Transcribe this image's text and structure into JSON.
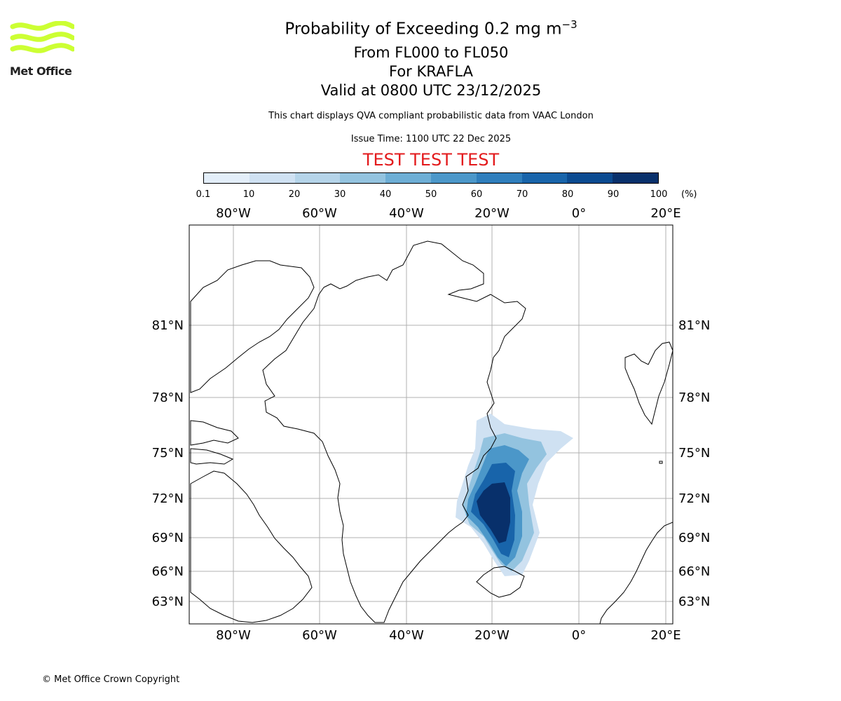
{
  "logo": {
    "text": "Met Office",
    "color": "#ccff33"
  },
  "header": {
    "title_prefix": "Probability of Exceeding 0.2 mg m",
    "title_sup": "−3",
    "levels": "From FL000 to FL050",
    "volcano": "For KRAFLA",
    "valid": "Valid at 0800 UTC 23/12/2025",
    "note": "This chart displays QVA compliant probabilistic data from VAAC London",
    "issue": "Issue Time: 1100 UTC 22 Dec 2025",
    "test_banner": "TEST TEST TEST",
    "test_color": "#e31a1c"
  },
  "colorbar": {
    "ticks": [
      "0.1",
      "10",
      "20",
      "30",
      "40",
      "50",
      "60",
      "70",
      "80",
      "90",
      "100"
    ],
    "unit": "(%)",
    "colors": [
      "#e3eef9",
      "#cfe1f2",
      "#b5d4e9",
      "#93c3df",
      "#6daed5",
      "#4b97c9",
      "#2f7ebc",
      "#1864aa",
      "#0a4a90",
      "#08306b"
    ]
  },
  "map": {
    "lon_labels": [
      "80°W",
      "60°W",
      "40°W",
      "20°W",
      "0°",
      "20°E"
    ],
    "lat_labels": [
      "81°N",
      "78°N",
      "75°N",
      "72°N",
      "69°N",
      "66°N",
      "63°N"
    ],
    "plume": {
      "type": "probability field",
      "source": "KRAFLA",
      "max_percent": 100,
      "extent_note": "plume from NE Iceland extending north toward East Greenland coast"
    }
  },
  "footer": {
    "copyright": "© Met Office Crown Copyright"
  }
}
